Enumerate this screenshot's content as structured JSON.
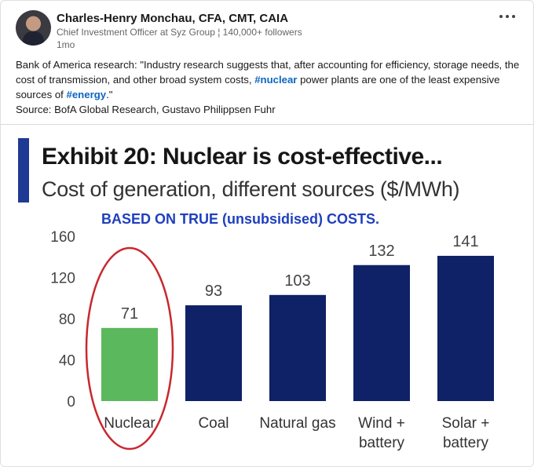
{
  "author": {
    "name": "Charles-Henry Monchau, CFA, CMT, CAIA",
    "headline": "Chief Investment Officer at Syz Group ¦ 140,000+ followers",
    "time": "1mo"
  },
  "post": {
    "part1": "Bank of America research: \"Industry research suggests that, after accounting for efficiency, storage needs, the cost of transmission, and other broad system costs, ",
    "hashtag1": "#nuclear",
    "part2": " power plants are one of the least expensive sources of ",
    "hashtag2": "#energy",
    "part3": ".\"",
    "source": "Source: BofA Global Research, Gustavo Philippsen Fuhr"
  },
  "colors": {
    "accent": "#1f3a93",
    "bar_default": "#0f2167",
    "bar_highlight": "#5cb85c",
    "circle": "#c8282e",
    "annotation": "#1f3fbd",
    "hashtag": "#0a66c2"
  },
  "chart_data": {
    "type": "bar",
    "title": "Exhibit 20: Nuclear is cost-effective...",
    "subtitle": "Cost of generation, different sources ($/MWh)",
    "annotation": "BASED ON TRUE (unsubsidised) COSTS.",
    "categories": [
      [
        "Nuclear"
      ],
      [
        "Coal"
      ],
      [
        "Natural gas"
      ],
      [
        "Wind +",
        "battery"
      ],
      [
        "Solar +",
        "battery"
      ]
    ],
    "values": [
      71,
      93,
      103,
      132,
      141
    ],
    "value_labels": [
      "71",
      "93",
      "103",
      "132",
      "141"
    ],
    "highlight_index": 0,
    "ylim": [
      0,
      160
    ],
    "yticks": [
      0,
      40,
      80,
      120,
      160
    ],
    "xlabel": "",
    "ylabel": "",
    "grid": false
  }
}
